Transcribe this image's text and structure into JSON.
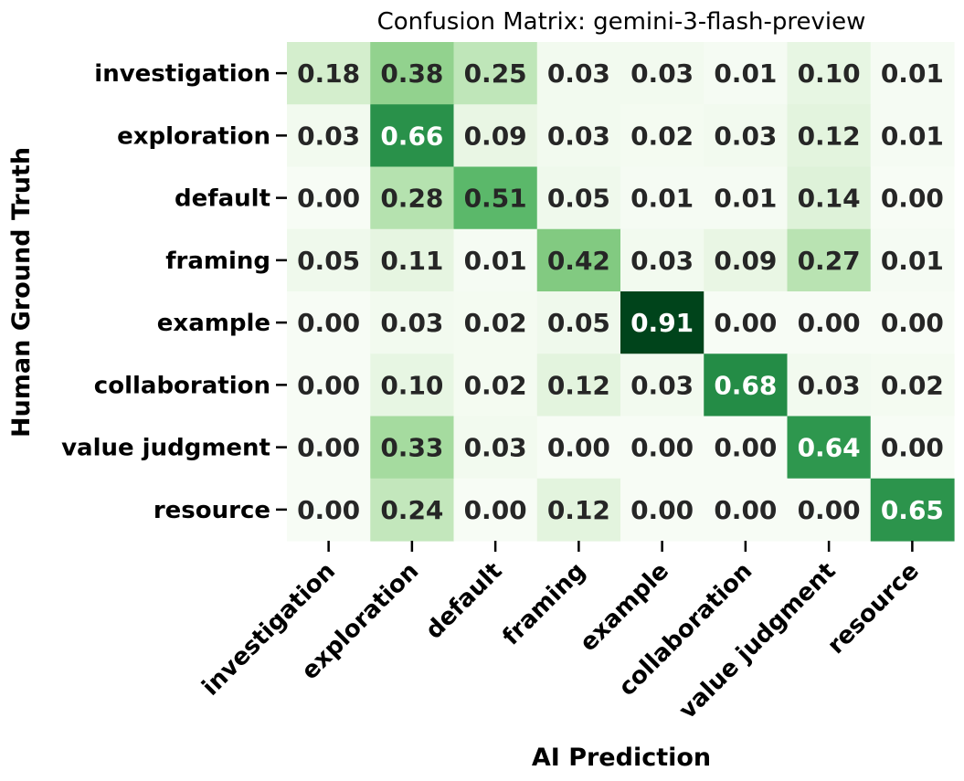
{
  "chart_data": {
    "type": "heatmap",
    "title": "Confusion Matrix: gemini-3-flash-preview",
    "xlabel": "AI Prediction",
    "ylabel": "Human Ground Truth",
    "x_categories": [
      "investigation",
      "exploration",
      "default",
      "framing",
      "example",
      "collaboration",
      "value judgment",
      "resource"
    ],
    "y_categories": [
      "investigation",
      "exploration",
      "default",
      "framing",
      "example",
      "collaboration",
      "value judgment",
      "resource"
    ],
    "values": [
      [
        0.18,
        0.38,
        0.25,
        0.03,
        0.03,
        0.01,
        0.1,
        0.01
      ],
      [
        0.03,
        0.66,
        0.09,
        0.03,
        0.02,
        0.03,
        0.12,
        0.01
      ],
      [
        0.0,
        0.28,
        0.51,
        0.05,
        0.01,
        0.01,
        0.14,
        0.0
      ],
      [
        0.05,
        0.11,
        0.01,
        0.42,
        0.03,
        0.09,
        0.27,
        0.01
      ],
      [
        0.0,
        0.03,
        0.02,
        0.05,
        0.91,
        0.0,
        0.0,
        0.0
      ],
      [
        0.0,
        0.1,
        0.02,
        0.12,
        0.03,
        0.68,
        0.03,
        0.02
      ],
      [
        0.0,
        0.33,
        0.03,
        0.0,
        0.0,
        0.0,
        0.64,
        0.0
      ],
      [
        0.0,
        0.24,
        0.0,
        0.12,
        0.0,
        0.0,
        0.0,
        0.65
      ]
    ],
    "colormap": "Greens",
    "value_range": [
      0,
      0.91
    ],
    "colorbar": false,
    "annotation_format": "0.00",
    "grid": false
  }
}
